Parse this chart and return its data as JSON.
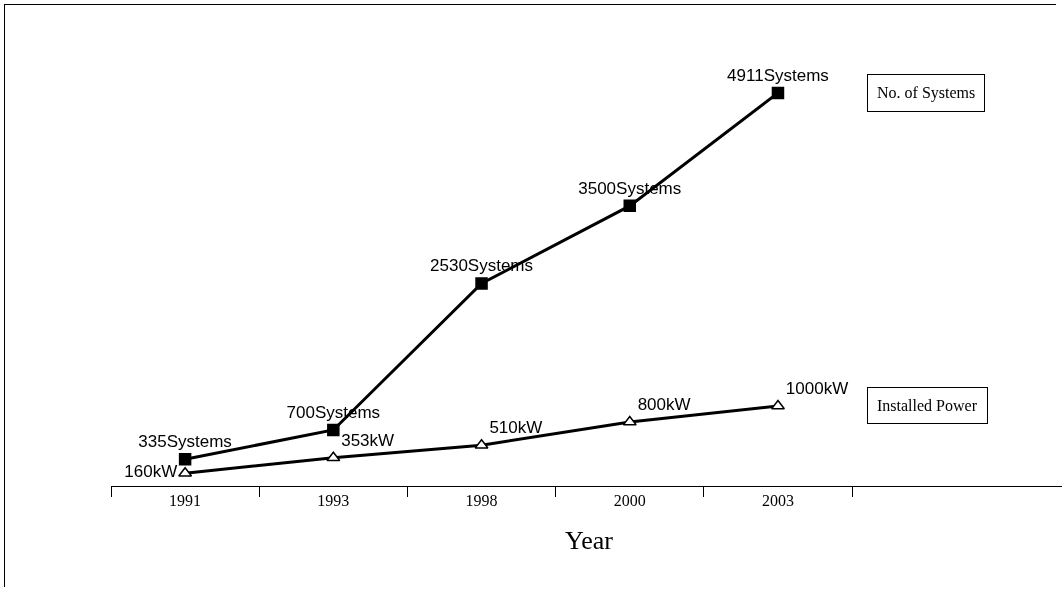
{
  "chart_data": {
    "type": "line",
    "xlabel": "Year",
    "categories": [
      "1991",
      "1993",
      "1998",
      "2000",
      "2003"
    ],
    "legend": false,
    "grid": false,
    "tick_labels": "x",
    "line_style": "solid",
    "series": [
      {
        "name": "No. of Systems",
        "color": "#000000",
        "marker": "square",
        "values": [
          335,
          700,
          2530,
          3500,
          4911
        ],
        "value_labels": [
          "335Systems",
          "700Systems",
          "2530Systems",
          "3500Systems",
          "4911Systems"
        ]
      },
      {
        "name": "Installed Power",
        "color": "#000000",
        "marker": "triangle",
        "values": [
          160,
          353,
          510,
          800,
          1000
        ],
        "value_labels": [
          "160kW",
          "353kW",
          "510kW",
          "800kW",
          "1000kW"
        ]
      }
    ]
  }
}
